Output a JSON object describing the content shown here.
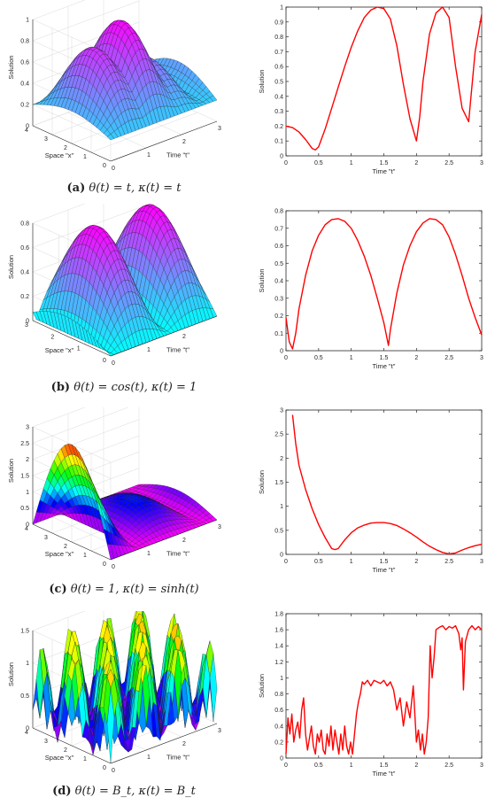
{
  "figure": {
    "panels": [
      {
        "id": "a",
        "caption_letter": "(a)",
        "caption_text": "θ(t) = t, κ(t) = t",
        "surface": {
          "type": "surface3d",
          "zlabel": "Solution",
          "xlabel": "Space \"x\"",
          "ylabel": "Time \"t\"",
          "ztick_labels": [
            "0",
            "0.2",
            "0.4",
            "0.6",
            "0.8",
            "1"
          ],
          "space_tick_labels": [
            "0",
            "1",
            "2",
            "3",
            "4"
          ],
          "time_tick_labels": [
            "0",
            "1",
            "2",
            "3"
          ],
          "colormap": "cool",
          "zlim": [
            0,
            1
          ]
        },
        "line": {
          "type": "line",
          "xlabel": "Time \"t\"",
          "ylabel": "Solution",
          "xlim": [
            0,
            3
          ],
          "ylim": [
            0,
            1
          ],
          "xtick_labels": [
            "0",
            "0.5",
            "1",
            "1.5",
            "2",
            "2.5",
            "3"
          ],
          "ytick_labels": [
            "0",
            "0.1",
            "0.2",
            "0.3",
            "0.4",
            "0.5",
            "0.6",
            "0.7",
            "0.8",
            "0.9",
            "1"
          ],
          "color": "#ff0000",
          "x": [
            0,
            0.1,
            0.2,
            0.3,
            0.4,
            0.45,
            0.5,
            0.6,
            0.7,
            0.8,
            0.9,
            1.0,
            1.1,
            1.2,
            1.3,
            1.4,
            1.5,
            1.6,
            1.7,
            1.8,
            1.9,
            2.0,
            2.05,
            2.1,
            2.2,
            2.3,
            2.4,
            2.5,
            2.6,
            2.7,
            2.8,
            2.9,
            3.0
          ],
          "y": [
            0.2,
            0.19,
            0.16,
            0.11,
            0.05,
            0.04,
            0.06,
            0.18,
            0.32,
            0.46,
            0.6,
            0.73,
            0.84,
            0.93,
            0.98,
            1.0,
            0.99,
            0.92,
            0.74,
            0.48,
            0.25,
            0.1,
            0.26,
            0.5,
            0.82,
            0.96,
            1.0,
            0.93,
            0.6,
            0.32,
            0.23,
            0.7,
            0.95
          ]
        }
      },
      {
        "id": "b",
        "caption_letter": "(b)",
        "caption_text": "θ(t) = cos(t), κ(t) = 1",
        "surface": {
          "type": "surface3d",
          "zlabel": "Solution",
          "xlabel": "Space \"x\"",
          "ylabel": "Time \"t\"",
          "ztick_labels": [
            "0",
            "0.2",
            "0.4",
            "0.6",
            "0.8"
          ],
          "space_tick_labels": [
            "0",
            "1",
            "2",
            "3"
          ],
          "time_tick_labels": [
            "0",
            "1",
            "2"
          ],
          "colormap": "cool",
          "zlim": [
            0,
            0.8
          ]
        },
        "line": {
          "type": "line",
          "xlabel": "Time \"t\"",
          "ylabel": "Solution",
          "xlim": [
            0,
            3
          ],
          "ylim": [
            0,
            0.8
          ],
          "xtick_labels": [
            "0",
            "0.5",
            "1",
            "1.5",
            "2",
            "2.5",
            "3"
          ],
          "ytick_labels": [
            "0",
            "0.1",
            "0.2",
            "0.3",
            "0.4",
            "0.5",
            "0.6",
            "0.7",
            "0.8"
          ],
          "color": "#ff0000",
          "x": [
            0,
            0.05,
            0.1,
            0.15,
            0.2,
            0.3,
            0.4,
            0.5,
            0.6,
            0.7,
            0.8,
            0.9,
            1.0,
            1.1,
            1.2,
            1.3,
            1.4,
            1.5,
            1.57,
            1.6,
            1.7,
            1.8,
            1.9,
            2.0,
            2.1,
            2.2,
            2.3,
            2.4,
            2.5,
            2.6,
            2.7,
            2.8,
            2.9,
            3.0
          ],
          "y": [
            0.19,
            0.05,
            0.01,
            0.1,
            0.24,
            0.43,
            0.57,
            0.66,
            0.72,
            0.75,
            0.755,
            0.74,
            0.7,
            0.63,
            0.54,
            0.43,
            0.3,
            0.16,
            0.03,
            0.12,
            0.33,
            0.49,
            0.6,
            0.68,
            0.73,
            0.755,
            0.75,
            0.72,
            0.65,
            0.55,
            0.43,
            0.3,
            0.19,
            0.09
          ]
        }
      },
      {
        "id": "c",
        "caption_letter": "(c)",
        "caption_text": "θ(t) = 1, κ(t) = sinh(t)",
        "surface": {
          "type": "surface3d",
          "zlabel": "Solution",
          "xlabel": "Space \"x\"",
          "ylabel": "Time \"t\"",
          "ztick_labels": [
            "0",
            "0.5",
            "1",
            "1.5",
            "2",
            "2.5",
            "3"
          ],
          "space_tick_labels": [
            "0",
            "1",
            "2",
            "3",
            "4"
          ],
          "time_tick_labels": [
            "0",
            "1",
            "2",
            "3"
          ],
          "colormap": "hsv",
          "zlim": [
            0,
            3
          ]
        },
        "line": {
          "type": "line",
          "xlabel": "Time \"t\"",
          "ylabel": "Solution",
          "xlim": [
            0,
            3
          ],
          "ylim": [
            0,
            3
          ],
          "xtick_labels": [
            "0",
            "0.5",
            "1",
            "1.5",
            "2",
            "2.5",
            "3"
          ],
          "ytick_labels": [
            "0",
            "0.5",
            "1",
            "1.5",
            "2",
            "2.5",
            "3"
          ],
          "color": "#ff0000",
          "x": [
            0.1,
            0.15,
            0.2,
            0.3,
            0.4,
            0.5,
            0.6,
            0.7,
            0.75,
            0.8,
            0.9,
            1.0,
            1.1,
            1.2,
            1.3,
            1.4,
            1.5,
            1.6,
            1.7,
            1.8,
            1.9,
            2.0,
            2.1,
            2.2,
            2.3,
            2.4,
            2.5,
            2.6,
            2.7,
            2.8,
            2.9,
            3.0
          ],
          "y": [
            2.9,
            2.3,
            1.85,
            1.35,
            0.95,
            0.62,
            0.35,
            0.12,
            0.1,
            0.12,
            0.3,
            0.45,
            0.55,
            0.61,
            0.65,
            0.66,
            0.66,
            0.64,
            0.6,
            0.53,
            0.45,
            0.36,
            0.26,
            0.17,
            0.1,
            0.04,
            0.01,
            0.03,
            0.09,
            0.14,
            0.18,
            0.21
          ]
        }
      },
      {
        "id": "d",
        "caption_letter": "(d)",
        "caption_text": "θ(t) = B_t, κ(t) = B_t",
        "surface": {
          "type": "surface3d",
          "zlabel": "Solution",
          "xlabel": "Space \"x\"",
          "ylabel": "Time \"t\"",
          "ztick_labels": [
            "0",
            "0.5",
            "1",
            "1.5"
          ],
          "space_tick_labels": [
            "0",
            "1",
            "2",
            "3",
            "4"
          ],
          "time_tick_labels": [
            "0",
            "1",
            "2",
            "3"
          ],
          "colormap": "hsv",
          "zlim": [
            0,
            1.5
          ]
        },
        "line": {
          "type": "line",
          "xlabel": "Time \"t\"",
          "ylabel": "Solution",
          "xlim": [
            0,
            3
          ],
          "ylim": [
            0,
            1.8
          ],
          "xtick_labels": [
            "0",
            "0.5",
            "1",
            "1.5",
            "2",
            "2.5",
            "3"
          ],
          "ytick_labels": [
            "0",
            "0.2",
            "0.4",
            "0.6",
            "0.8",
            "1",
            "1.2",
            "1.4",
            "1.6",
            "1.8"
          ],
          "color": "#ff0000",
          "x": [
            0,
            0.03,
            0.06,
            0.09,
            0.12,
            0.15,
            0.18,
            0.21,
            0.24,
            0.27,
            0.3,
            0.33,
            0.36,
            0.39,
            0.42,
            0.45,
            0.48,
            0.51,
            0.54,
            0.57,
            0.6,
            0.63,
            0.66,
            0.69,
            0.72,
            0.75,
            0.78,
            0.81,
            0.84,
            0.87,
            0.9,
            0.93,
            0.96,
            0.99,
            1.02,
            1.05,
            1.08,
            1.11,
            1.14,
            1.17,
            1.2,
            1.25,
            1.3,
            1.35,
            1.4,
            1.45,
            1.5,
            1.55,
            1.6,
            1.65,
            1.7,
            1.75,
            1.8,
            1.85,
            1.9,
            1.95,
            2.0,
            2.03,
            2.06,
            2.09,
            2.12,
            2.15,
            2.18,
            2.21,
            2.24,
            2.27,
            2.3,
            2.35,
            2.4,
            2.45,
            2.5,
            2.55,
            2.6,
            2.65,
            2.68,
            2.7,
            2.72,
            2.75,
            2.8,
            2.85,
            2.9,
            2.95,
            3.0
          ],
          "y": [
            0.05,
            0.5,
            0.3,
            0.55,
            0.2,
            0.35,
            0.45,
            0.25,
            0.6,
            0.75,
            0.3,
            0.1,
            0.25,
            0.4,
            0.15,
            0.05,
            0.3,
            0.2,
            0.35,
            0.1,
            0.05,
            0.3,
            0.15,
            0.4,
            0.1,
            0.35,
            0.2,
            0.05,
            0.3,
            0.1,
            0.4,
            0.15,
            0.05,
            0.2,
            0.05,
            0.3,
            0.55,
            0.7,
            0.8,
            0.95,
            0.92,
            0.97,
            0.9,
            0.97,
            0.95,
            0.93,
            0.97,
            0.9,
            0.95,
            0.85,
            0.6,
            0.75,
            0.4,
            0.7,
            0.5,
            0.9,
            0.2,
            0.35,
            0.1,
            0.3,
            0.05,
            0.2,
            0.5,
            1.4,
            1.0,
            1.25,
            1.6,
            1.63,
            1.65,
            1.6,
            1.64,
            1.62,
            1.65,
            1.55,
            1.35,
            1.5,
            0.85,
            1.45,
            1.6,
            1.65,
            1.6,
            1.64,
            1.6
          ]
        }
      }
    ]
  }
}
